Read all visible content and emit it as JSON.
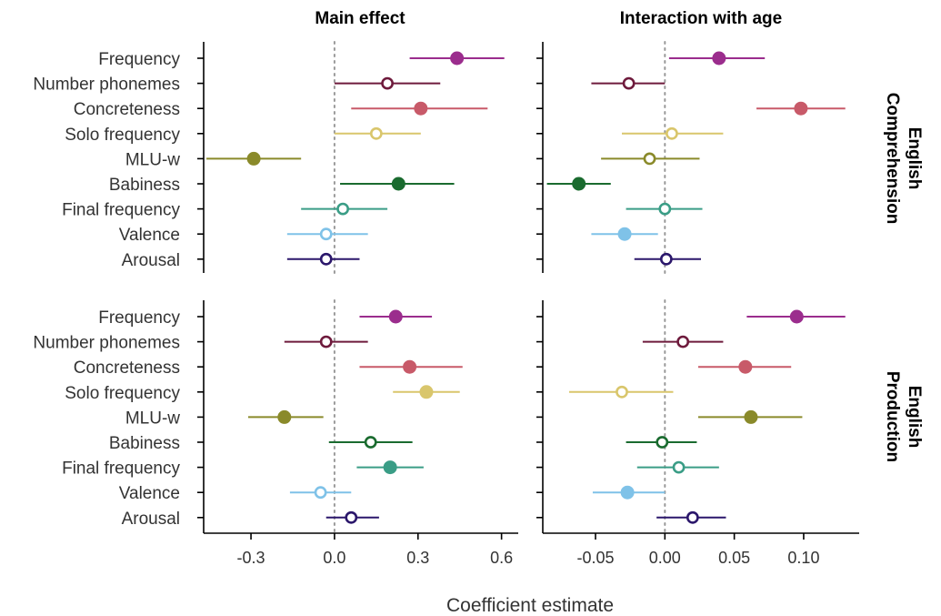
{
  "chart_data": {
    "type": "forest",
    "xlabel": "Coefficient estimate",
    "predictors": [
      "Frequency",
      "Number phonemes",
      "Concreteness",
      "Solo frequency",
      "MLU-w",
      "Babiness",
      "Final frequency",
      "Valence",
      "Arousal"
    ],
    "colors": {
      "Frequency": "#9b2d8d",
      "Number phonemes": "#6e1a3c",
      "Concreteness": "#c85a69",
      "Solo frequency": "#d9c66c",
      "MLU-w": "#8a8a2a",
      "Babiness": "#1a6b2f",
      "Final frequency": "#3a9d86",
      "Valence": "#7fc2e8",
      "Arousal": "#2b176b"
    },
    "columns": [
      {
        "title": "Main effect",
        "xlim": [
          -0.47,
          0.66
        ],
        "ticks": [
          -0.3,
          0.0,
          0.3,
          0.6
        ],
        "tick_labels": [
          "-0.3",
          "0.0",
          "0.3",
          "0.6"
        ]
      },
      {
        "title": "Interaction with age",
        "xlim": [
          -0.088,
          0.14
        ],
        "ticks": [
          -0.05,
          0.0,
          0.05,
          0.1
        ],
        "tick_labels": [
          "-0.05",
          "0.00",
          "0.05",
          "0.10"
        ]
      }
    ],
    "rows": [
      {
        "label": "English\nComprehension",
        "label_lines": [
          "English",
          "Comprehension"
        ]
      },
      {
        "label": "English\nProduction",
        "label_lines": [
          "English",
          "Production"
        ]
      }
    ],
    "panels": [
      {
        "row": 0,
        "col": 0,
        "points": [
          {
            "predictor": "Frequency",
            "estimate": 0.44,
            "lo": 0.27,
            "hi": 0.61,
            "significant": true
          },
          {
            "predictor": "Number phonemes",
            "estimate": 0.19,
            "lo": 0.0,
            "hi": 0.38,
            "significant": false
          },
          {
            "predictor": "Concreteness",
            "estimate": 0.31,
            "lo": 0.06,
            "hi": 0.55,
            "significant": true
          },
          {
            "predictor": "Solo frequency",
            "estimate": 0.15,
            "lo": 0.0,
            "hi": 0.31,
            "significant": false
          },
          {
            "predictor": "MLU-w",
            "estimate": -0.29,
            "lo": -0.46,
            "hi": -0.12,
            "significant": true
          },
          {
            "predictor": "Babiness",
            "estimate": 0.23,
            "lo": 0.02,
            "hi": 0.43,
            "significant": true
          },
          {
            "predictor": "Final frequency",
            "estimate": 0.03,
            "lo": -0.12,
            "hi": 0.19,
            "significant": false
          },
          {
            "predictor": "Valence",
            "estimate": -0.03,
            "lo": -0.17,
            "hi": 0.12,
            "significant": false
          },
          {
            "predictor": "Arousal",
            "estimate": -0.03,
            "lo": -0.17,
            "hi": 0.09,
            "significant": false
          }
        ]
      },
      {
        "row": 0,
        "col": 1,
        "points": [
          {
            "predictor": "Frequency",
            "estimate": 0.039,
            "lo": 0.003,
            "hi": 0.072,
            "significant": true
          },
          {
            "predictor": "Number phonemes",
            "estimate": -0.026,
            "lo": -0.053,
            "hi": 0.0,
            "significant": false
          },
          {
            "predictor": "Concreteness",
            "estimate": 0.098,
            "lo": 0.066,
            "hi": 0.13,
            "significant": true
          },
          {
            "predictor": "Solo frequency",
            "estimate": 0.005,
            "lo": -0.031,
            "hi": 0.042,
            "significant": false
          },
          {
            "predictor": "MLU-w",
            "estimate": -0.011,
            "lo": -0.046,
            "hi": 0.025,
            "significant": false
          },
          {
            "predictor": "Babiness",
            "estimate": -0.062,
            "lo": -0.085,
            "hi": -0.039,
            "significant": true
          },
          {
            "predictor": "Final frequency",
            "estimate": 0.0,
            "lo": -0.028,
            "hi": 0.027,
            "significant": false
          },
          {
            "predictor": "Valence",
            "estimate": -0.029,
            "lo": -0.053,
            "hi": -0.005,
            "significant": true
          },
          {
            "predictor": "Arousal",
            "estimate": 0.001,
            "lo": -0.022,
            "hi": 0.026,
            "significant": false
          }
        ]
      },
      {
        "row": 1,
        "col": 0,
        "points": [
          {
            "predictor": "Frequency",
            "estimate": 0.22,
            "lo": 0.09,
            "hi": 0.35,
            "significant": true
          },
          {
            "predictor": "Number phonemes",
            "estimate": -0.03,
            "lo": -0.18,
            "hi": 0.12,
            "significant": false
          },
          {
            "predictor": "Concreteness",
            "estimate": 0.27,
            "lo": 0.09,
            "hi": 0.46,
            "significant": true
          },
          {
            "predictor": "Solo frequency",
            "estimate": 0.33,
            "lo": 0.21,
            "hi": 0.45,
            "significant": true
          },
          {
            "predictor": "MLU-w",
            "estimate": -0.18,
            "lo": -0.31,
            "hi": -0.04,
            "significant": true
          },
          {
            "predictor": "Babiness",
            "estimate": 0.13,
            "lo": -0.02,
            "hi": 0.28,
            "significant": false
          },
          {
            "predictor": "Final frequency",
            "estimate": 0.2,
            "lo": 0.08,
            "hi": 0.32,
            "significant": true
          },
          {
            "predictor": "Valence",
            "estimate": -0.05,
            "lo": -0.16,
            "hi": 0.06,
            "significant": false
          },
          {
            "predictor": "Arousal",
            "estimate": 0.06,
            "lo": -0.03,
            "hi": 0.16,
            "significant": false
          }
        ]
      },
      {
        "row": 1,
        "col": 1,
        "points": [
          {
            "predictor": "Frequency",
            "estimate": 0.095,
            "lo": 0.059,
            "hi": 0.13,
            "significant": true
          },
          {
            "predictor": "Number phonemes",
            "estimate": 0.013,
            "lo": -0.016,
            "hi": 0.042,
            "significant": false
          },
          {
            "predictor": "Concreteness",
            "estimate": 0.058,
            "lo": 0.024,
            "hi": 0.091,
            "significant": true
          },
          {
            "predictor": "Solo frequency",
            "estimate": -0.031,
            "lo": -0.069,
            "hi": 0.006,
            "significant": false
          },
          {
            "predictor": "MLU-w",
            "estimate": 0.062,
            "lo": 0.024,
            "hi": 0.099,
            "significant": true
          },
          {
            "predictor": "Babiness",
            "estimate": -0.002,
            "lo": -0.028,
            "hi": 0.023,
            "significant": false
          },
          {
            "predictor": "Final frequency",
            "estimate": 0.01,
            "lo": -0.02,
            "hi": 0.039,
            "significant": false
          },
          {
            "predictor": "Valence",
            "estimate": -0.027,
            "lo": -0.052,
            "hi": 0.0,
            "significant": true
          },
          {
            "predictor": "Arousal",
            "estimate": 0.02,
            "lo": -0.006,
            "hi": 0.044,
            "significant": false
          }
        ]
      }
    ]
  }
}
